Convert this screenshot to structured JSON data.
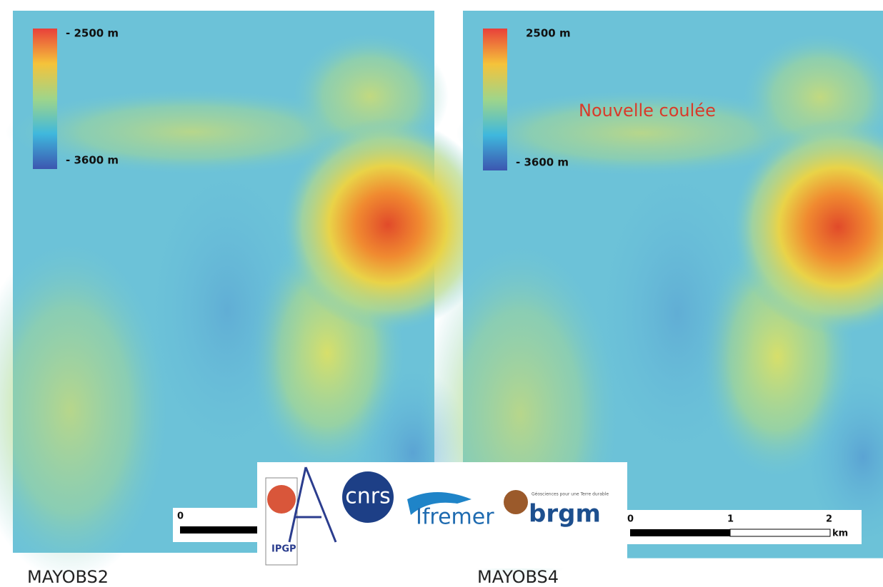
{
  "panels": [
    {
      "caption": "MAYOBS2",
      "legend": {
        "top": "- 2500 m",
        "bottom": "- 3600 m"
      },
      "scale": {
        "ticks": [
          0
        ]
      }
    },
    {
      "caption": "MAYOBS4",
      "legend": {
        "top": "2500 m",
        "bottom": "- 3600 m"
      },
      "annotation": "Nouvelle coulée",
      "scale": {
        "ticks": [
          0,
          1,
          2
        ],
        "unit": "km"
      }
    }
  ],
  "logos": {
    "ipgp": "IPGP",
    "cnrs": "cnrs",
    "ifremer": "Ifremer",
    "brgm": "brgm",
    "brgm_tagline": "Géosciences pour une Terre durable"
  }
}
